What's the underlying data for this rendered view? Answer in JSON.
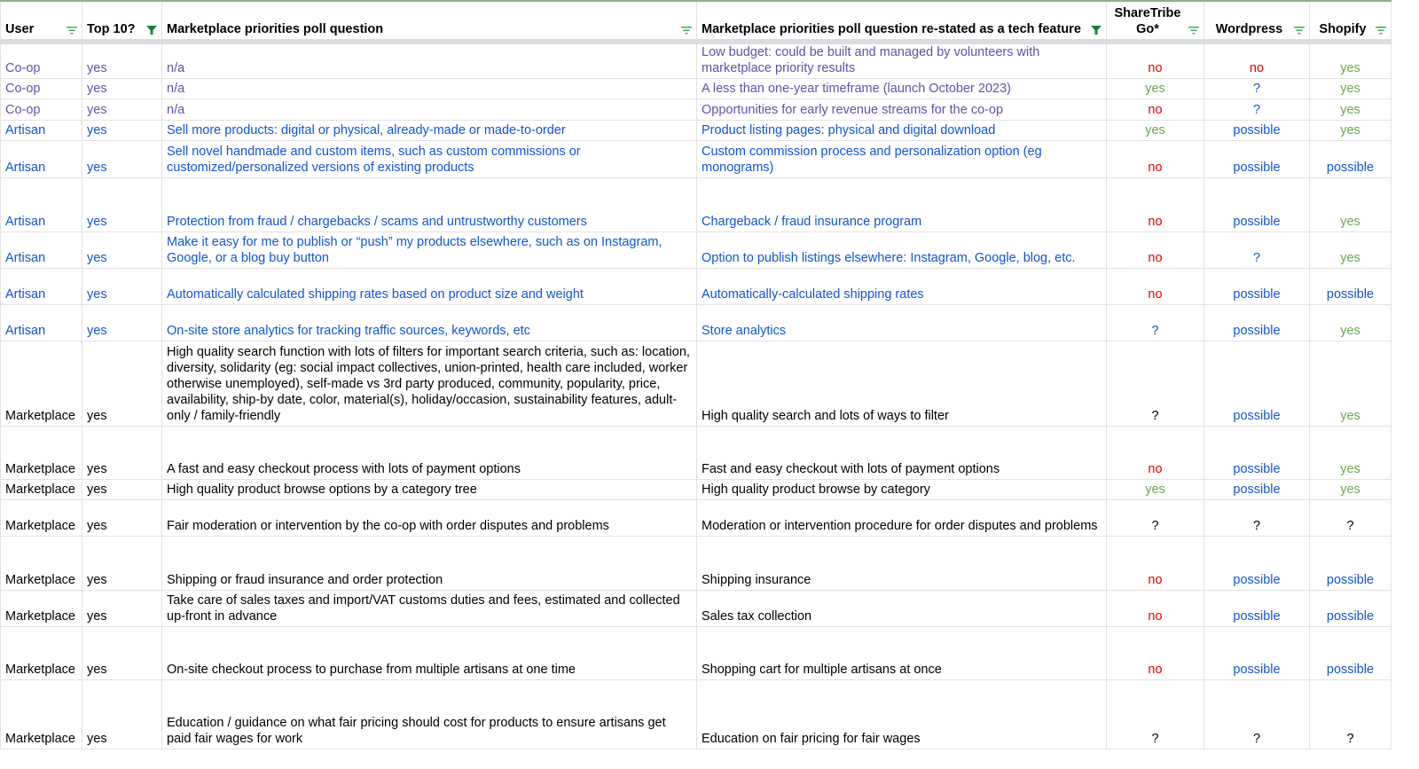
{
  "columns": [
    {
      "label": "User",
      "filter_active": false
    },
    {
      "label": "Top 10?",
      "filter_active": true
    },
    {
      "label": "Marketplace priorities poll question",
      "filter_active": false
    },
    {
      "label": "Marketplace priorities poll question re-stated as a tech feature",
      "filter_active": true
    },
    {
      "label": "ShareTribe Go*",
      "filter_active": false
    },
    {
      "label": "Wordpress",
      "filter_active": false
    },
    {
      "label": "Shopify",
      "filter_active": false
    }
  ],
  "colors": {
    "coop": "#674ea7",
    "artisan": "#1155cc",
    "marketplace": "#000000",
    "no": "#e00000",
    "yes": "#6aa84f",
    "possible": "#1155cc",
    "filter_active": "#188038",
    "filter_inactive": "#34a853"
  },
  "rows": [
    {
      "user": "Co-op",
      "top10": "yes",
      "question": "n/a",
      "feature": "Low budget: could be built and managed by volunteers with marketplace priority results",
      "sharetribe": "no",
      "wordpress": "no",
      "shopify": "yes",
      "h": 41
    },
    {
      "user": "Co-op",
      "top10": "yes",
      "question": "n/a",
      "feature": "A less than one-year timeframe (launch October 2023)",
      "sharetribe": "yes",
      "wordpress": "?",
      "shopify": "yes",
      "h": 23
    },
    {
      "user": "Co-op",
      "top10": "yes",
      "question": "n/a",
      "feature": "Opportunities for early revenue streams for the co-op",
      "sharetribe": "no",
      "wordpress": "?",
      "shopify": "yes",
      "h": 24
    },
    {
      "user": "Artisan",
      "top10": "yes",
      "question": "Sell more products: digital or physical, already-made or made-to-order",
      "feature": "Product listing pages: physical and digital download",
      "sharetribe": "yes",
      "wordpress": "possible",
      "shopify": "yes",
      "h": 23
    },
    {
      "user": "Artisan",
      "top10": "yes",
      "question": "Sell novel handmade and custom items, such as custom commissions or customized/personalized versions of existing products",
      "feature": "Custom commission process and personalization option (eg monograms)",
      "sharetribe": "no",
      "wordpress": "possible",
      "shopify": "possible",
      "h": 42
    },
    {
      "user": "Artisan",
      "top10": "yes",
      "question": "Protection from fraud / chargebacks / scams and untrustworthy customers",
      "feature": "Chargeback / fraud insurance program",
      "sharetribe": "no",
      "wordpress": "possible",
      "shopify": "yes",
      "h": 61
    },
    {
      "user": "Artisan",
      "top10": "yes",
      "question": "Make it easy for me to publish or “push” my products elsewhere, such as on Instagram, Google, or a blog buy button",
      "feature": "Option to publish listings elsewhere: Instagram, Google, blog, etc.",
      "sharetribe": "no",
      "wordpress": "?",
      "shopify": "yes",
      "h": 41
    },
    {
      "user": "Artisan",
      "top10": "yes",
      "question": "Automatically calculated shipping rates based on product size and weight",
      "feature": "Automatically-calculated shipping rates",
      "sharetribe": "no",
      "wordpress": "possible",
      "shopify": "possible",
      "h": 41
    },
    {
      "user": "Artisan",
      "top10": "yes",
      "question": "On-site store analytics for tracking traffic sources, keywords, etc",
      "feature": "Store analytics",
      "sharetribe": "?",
      "wordpress": "possible",
      "shopify": "yes",
      "h": 41
    },
    {
      "user": "Marketplace",
      "top10": "yes",
      "question": "High quality search function with lots of filters for important search criteria, such as: location, diversity, solidarity (eg: social impact collectives, union-printed, health care included, worker otherwise unemployed), self-made vs 3rd party produced, community, popularity, price, availability, ship-by date, color, material(s), holiday/occasion, sustainability features, adult-only / family-friendly",
      "feature": "High quality search and lots of ways to filter",
      "sharetribe": "?",
      "wordpress": "possible",
      "shopify": "yes",
      "h": 96
    },
    {
      "user": "Marketplace",
      "top10": "yes",
      "question": "A fast and easy checkout process with lots of payment options",
      "feature": "Fast and easy checkout with lots of payment options",
      "sharetribe": "no",
      "wordpress": "possible",
      "shopify": "yes",
      "h": 60
    },
    {
      "user": "Marketplace",
      "top10": "yes",
      "question": "High quality product browse options by a category tree",
      "feature": "High quality product browse by category",
      "sharetribe": "yes",
      "wordpress": "possible",
      "shopify": "yes",
      "h": 23
    },
    {
      "user": "Marketplace",
      "top10": "yes",
      "question": "Fair moderation or intervention by the co-op with order disputes and problems",
      "feature": "Moderation or intervention procedure for order disputes and problems",
      "sharetribe": "?",
      "wordpress": "?",
      "shopify": "?",
      "h": 41
    },
    {
      "user": "Marketplace",
      "top10": "yes",
      "question": "Shipping or fraud insurance and order protection",
      "feature": "Shipping insurance",
      "sharetribe": "no",
      "wordpress": "possible",
      "shopify": "possible",
      "h": 61
    },
    {
      "user": "Marketplace",
      "top10": "yes",
      "question": "Take care of sales taxes and import/VAT customs duties and fees, estimated and collected up-front in advance",
      "feature": "Sales tax collection",
      "sharetribe": "no",
      "wordpress": "possible",
      "shopify": "possible",
      "h": 41
    },
    {
      "user": "Marketplace",
      "top10": "yes",
      "question": "On-site checkout process to purchase from multiple artisans at one time",
      "feature": "Shopping cart for multiple artisans at once",
      "sharetribe": "no",
      "wordpress": "possible",
      "shopify": "possible",
      "h": 60
    },
    {
      "user": "Marketplace",
      "top10": "yes",
      "question": "Education / guidance on what fair pricing should cost for products to ensure artisans get paid fair wages for work",
      "feature": "Education on fair pricing for fair wages",
      "sharetribe": "?",
      "wordpress": "?",
      "shopify": "?",
      "h": 78
    }
  ]
}
